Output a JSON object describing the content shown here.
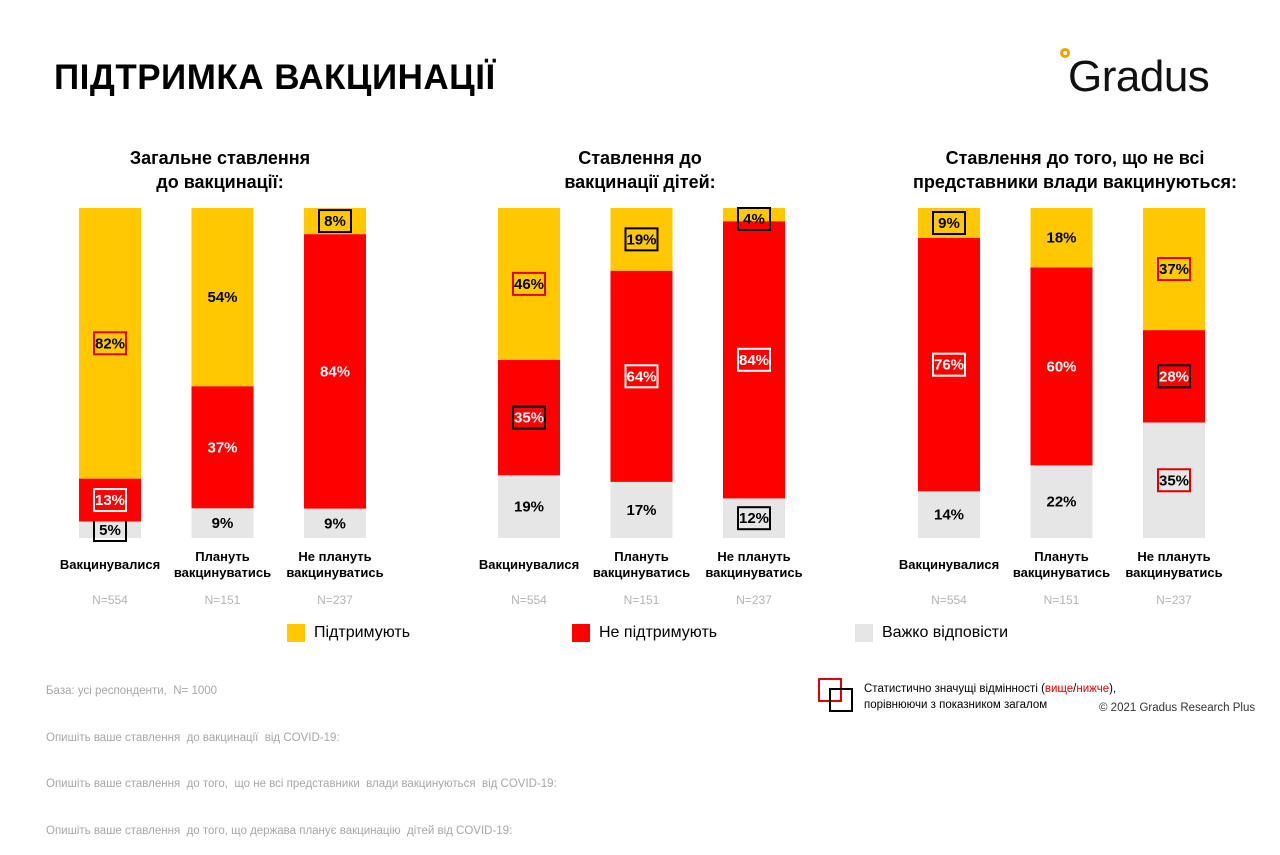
{
  "title": "ПІДТРИМКА ВАКЦИНАЦІЇ",
  "logo_text": "Gradus",
  "colors": {
    "support": "#ffc800",
    "not_support": "#ff0000",
    "hard": "#e6e6e6",
    "sig_higher": "#e00000",
    "sig_lower": "#000000"
  },
  "chart_data": [
    {
      "type": "bar",
      "stacked": true,
      "title_line1": "Загальне ставлення",
      "title_line2": "до вакцинації:",
      "categories": [
        [
          "Вакцинувалися"
        ],
        [
          "Плануть",
          "вакцинуватись"
        ],
        [
          "Не плануть",
          "вакцинуватись"
        ]
      ],
      "n_labels": [
        "N=554",
        "N=151",
        "N=237"
      ],
      "series": [
        {
          "name": "Важко відповісти",
          "values": [
            5,
            9,
            9
          ]
        },
        {
          "name": "Не підтримують",
          "values": [
            13,
            37,
            84
          ]
        },
        {
          "name": "Підтримують",
          "values": [
            82,
            54,
            8
          ]
        }
      ],
      "significance": [
        [
          "lower",
          null,
          null
        ],
        [
          "higher",
          null,
          null
        ],
        [
          "higher",
          null,
          "lower"
        ]
      ],
      "ylim": [
        0,
        100
      ]
    },
    {
      "type": "bar",
      "stacked": true,
      "title_line1": "Ставлення до",
      "title_line2": "вакцинації дітей:",
      "categories": [
        [
          "Вакцинувалися"
        ],
        [
          "Плануть",
          "вакцинуватись"
        ],
        [
          "Не плануть",
          "вакцинуватись"
        ]
      ],
      "n_labels": [
        "N=554",
        "N=151",
        "N=237"
      ],
      "series": [
        {
          "name": "Важко відповісти",
          "values": [
            19,
            17,
            12
          ]
        },
        {
          "name": "Не підтримують",
          "values": [
            35,
            64,
            84
          ]
        },
        {
          "name": "Підтримують",
          "values": [
            46,
            19,
            4
          ]
        }
      ],
      "significance": [
        [
          null,
          null,
          "lower"
        ],
        [
          "lower",
          "higher",
          "higher"
        ],
        [
          "higher",
          "lower",
          "lower"
        ]
      ],
      "ylim": [
        0,
        100
      ]
    },
    {
      "type": "bar",
      "stacked": true,
      "title_line1": "Ставлення до того, що не всі",
      "title_line2": "представники влади вакцинуються:",
      "categories": [
        [
          "Вакцинувалися"
        ],
        [
          "Плануть",
          "вакцинуватись"
        ],
        [
          "Не плануть",
          "вакцинуватись"
        ]
      ],
      "n_labels": [
        "N=554",
        "N=151",
        "N=237"
      ],
      "series": [
        {
          "name": "Важко відповісти",
          "values": [
            14,
            22,
            35
          ]
        },
        {
          "name": "Не підтримують",
          "values": [
            76,
            60,
            28
          ]
        },
        {
          "name": "Підтримують",
          "values": [
            9,
            18,
            37
          ]
        }
      ],
      "significance": [
        [
          null,
          null,
          "higher"
        ],
        [
          "higher",
          null,
          "lower"
        ],
        [
          "lower",
          null,
          "higher"
        ]
      ],
      "ylim": [
        0,
        100
      ]
    }
  ],
  "legend": [
    {
      "label": "Підтримують",
      "color": "#ffc800"
    },
    {
      "label": "Не підтримують",
      "color": "#ff0000"
    },
    {
      "label": "Важко відповісти",
      "color": "#e6e6e6"
    }
  ],
  "notes": {
    "line1": "База: усі респонденти,  N= 1000",
    "line2": "Опишіть ваше ставлення  до вакцинації  від COVID-19:",
    "line3": "Опишіть ваше ставлення  до того,  що не всі представники  влади вакцинуються  від COVID-19:",
    "line4": "Опишіть ваше ставлення  до того, що держава планує вакцинацію  дітей від COVID-19:"
  },
  "significance_note": {
    "prefix": "Статистично  значущі відмінності (",
    "higher": "вище",
    "slash": "/",
    "lower": "нижче",
    "suffix": "),",
    "line2": "порівнюючи  з показником загалом"
  },
  "copyright": "© 2021 Gradus Research Plus"
}
